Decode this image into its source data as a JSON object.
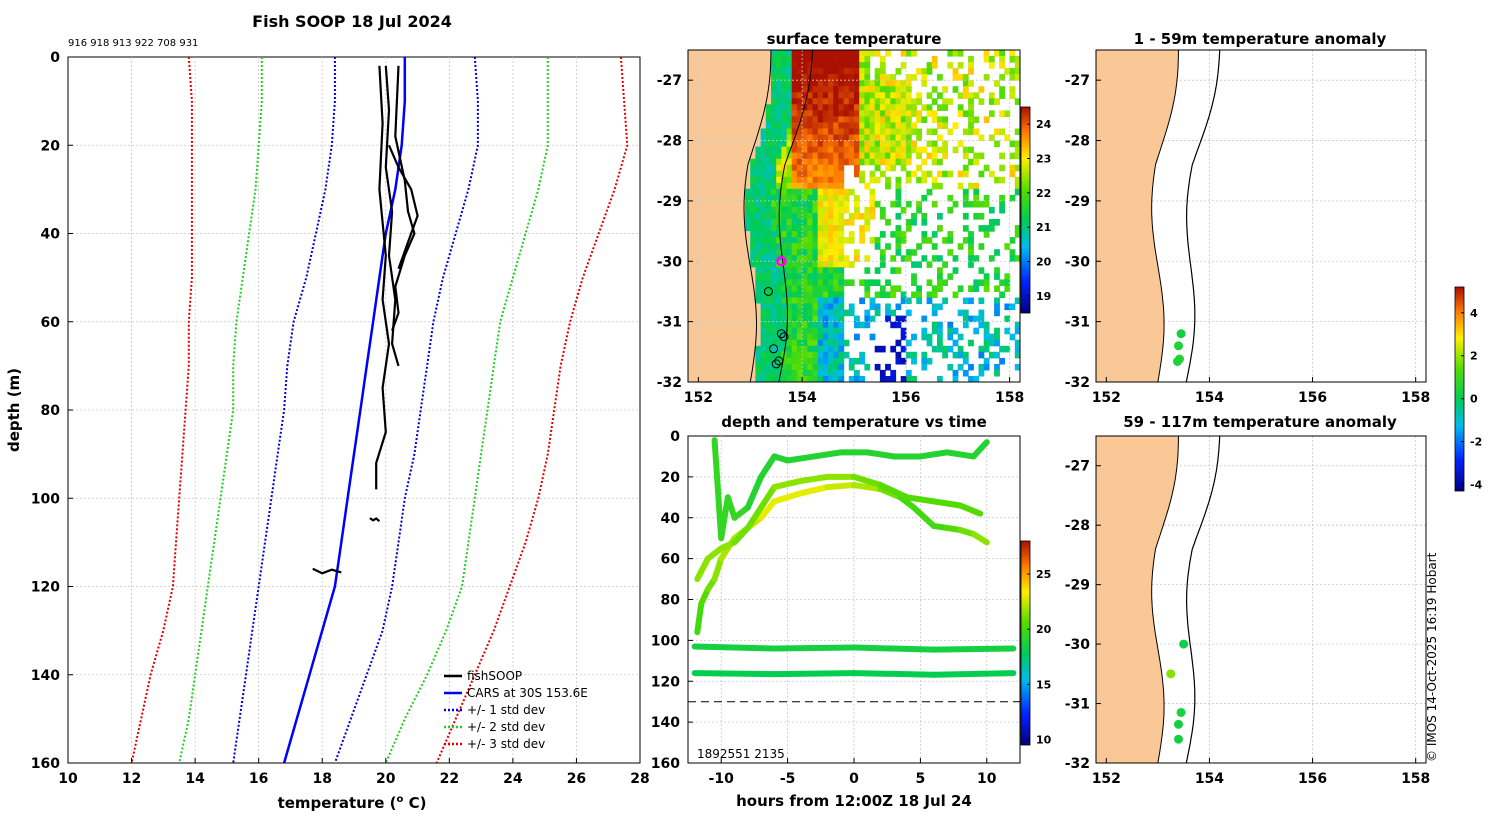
{
  "figure": {
    "main_title": "Fish SOOP 18 Jul 2024",
    "profile_ids": "916 918 913 922 708 931",
    "copyright": "© IMOS 14-Oct-2025 16:19 Hobart"
  },
  "colors": {
    "cars": "#0000ff",
    "std1": "#0000cc",
    "std2": "#22cc22",
    "std3": "#dd0000",
    "fish": "#000000",
    "land": "#f9c896",
    "marker": "#ff00ff"
  },
  "chart_data": [
    {
      "id": "profile",
      "type": "line",
      "title": "",
      "xlabel": "temperature (° C)",
      "xlabel_parts": [
        "temperature (",
        "o",
        " C)"
      ],
      "ylabel": "depth (m)",
      "xlim": [
        10,
        28
      ],
      "ylim": [
        160,
        0
      ],
      "xticks": [
        10,
        12,
        14,
        16,
        18,
        20,
        22,
        24,
        26,
        28
      ],
      "yticks": [
        0,
        20,
        40,
        60,
        80,
        100,
        120,
        140,
        160
      ],
      "legend_position": "bottom-right",
      "legend": [
        "fishSOOP",
        "CARS at 30S 153.6E",
        "+/- 1 std dev",
        "+/- 2 std dev",
        "+/- 3 std dev"
      ],
      "depth": [
        0,
        10,
        20,
        30,
        40,
        50,
        60,
        70,
        80,
        90,
        100,
        110,
        120,
        130,
        140,
        150,
        160
      ],
      "series": [
        {
          "name": "CARS at 30S 153.6E",
          "style": "solid",
          "color_key": "cars",
          "temps": [
            20.6,
            20.6,
            20.5,
            20.3,
            20.0,
            19.8,
            19.6,
            19.4,
            19.2,
            19.0,
            18.8,
            18.6,
            18.4,
            18.0,
            17.6,
            17.2,
            16.8
          ]
        },
        {
          "name": "+1 std",
          "style": "dotted",
          "color_key": "std1",
          "temps": [
            22.8,
            22.9,
            22.9,
            22.6,
            22.2,
            21.8,
            21.5,
            21.3,
            21.1,
            20.9,
            20.6,
            20.4,
            20.2,
            19.9,
            19.4,
            18.9,
            18.4
          ]
        },
        {
          "name": "-1 std",
          "style": "dotted",
          "color_key": "std1",
          "temps": [
            18.4,
            18.4,
            18.3,
            18.1,
            17.8,
            17.5,
            17.1,
            16.9,
            16.8,
            16.6,
            16.4,
            16.2,
            16.0,
            15.8,
            15.6,
            15.4,
            15.2
          ]
        },
        {
          "name": "+2 std",
          "style": "dotted",
          "color_key": "std2",
          "temps": [
            25.1,
            25.1,
            25.1,
            24.8,
            24.4,
            24.0,
            23.6,
            23.4,
            23.2,
            23.0,
            22.8,
            22.6,
            22.4,
            21.9,
            21.3,
            20.6,
            20.0
          ]
        },
        {
          "name": "-2 std",
          "style": "dotted",
          "color_key": "std2",
          "temps": [
            16.1,
            16.1,
            16.0,
            15.9,
            15.7,
            15.5,
            15.3,
            15.2,
            15.2,
            15.0,
            14.8,
            14.6,
            14.4,
            14.2,
            14.0,
            13.8,
            13.5
          ]
        },
        {
          "name": "+3 std",
          "style": "dotted",
          "color_key": "std3",
          "temps": [
            27.4,
            27.5,
            27.6,
            27.2,
            26.7,
            26.2,
            25.8,
            25.5,
            25.3,
            25.1,
            24.8,
            24.4,
            23.9,
            23.4,
            22.8,
            22.2,
            21.6
          ]
        },
        {
          "name": "-3 std",
          "style": "dotted",
          "color_key": "std3",
          "temps": [
            13.8,
            13.9,
            13.9,
            13.9,
            13.9,
            13.9,
            13.8,
            13.8,
            13.7,
            13.6,
            13.5,
            13.4,
            13.3,
            13.0,
            12.6,
            12.3,
            12.0
          ]
        }
      ],
      "fish_profiles": [
        {
          "name": "fishSOOP A",
          "points": [
            [
              19.8,
              2
            ],
            [
              19.9,
              15
            ],
            [
              19.8,
              30
            ],
            [
              20.0,
              45
            ],
            [
              19.9,
              55
            ],
            [
              20.1,
              65
            ],
            [
              19.9,
              75
            ],
            [
              20.0,
              85
            ],
            [
              19.7,
              92
            ],
            [
              19.7,
              98
            ]
          ]
        },
        {
          "name": "fishSOOP B",
          "points": [
            [
              20.0,
              2
            ],
            [
              20.1,
              12
            ],
            [
              20.0,
              25
            ],
            [
              20.2,
              35
            ],
            [
              20.1,
              45
            ],
            [
              20.3,
              55
            ],
            [
              20.2,
              65
            ],
            [
              20.4,
              70
            ]
          ]
        },
        {
          "name": "fishSOOP C",
          "points": [
            [
              20.4,
              2
            ],
            [
              20.3,
              18
            ],
            [
              20.6,
              28
            ],
            [
              20.7,
              35
            ],
            [
              20.9,
              40
            ],
            [
              20.6,
              45
            ],
            [
              20.3,
              52
            ],
            [
              20.4,
              58
            ],
            [
              20.2,
              62
            ]
          ]
        },
        {
          "name": "fishSOOP D",
          "points": [
            [
              20.1,
              20
            ],
            [
              20.4,
              25
            ],
            [
              20.8,
              30
            ],
            [
              21.0,
              36
            ],
            [
              20.7,
              42
            ],
            [
              20.4,
              48
            ]
          ]
        },
        {
          "name": "fishSOOP E",
          "points": [
            [
              19.5,
              104.5
            ],
            [
              19.6,
              105
            ],
            [
              19.7,
              104.6
            ],
            [
              19.8,
              105.2
            ]
          ]
        },
        {
          "name": "fishSOOP F",
          "points": [
            [
              17.7,
              116
            ],
            [
              18.0,
              117
            ],
            [
              18.3,
              116.2
            ],
            [
              18.6,
              116.8
            ]
          ]
        }
      ]
    },
    {
      "id": "sst_map",
      "type": "heatmap",
      "title": "surface temperature",
      "xlim": [
        151.8,
        158.2
      ],
      "ylim": [
        -32,
        -26.5
      ],
      "xticks": [
        152,
        154,
        156,
        158
      ],
      "yticks": [
        -27,
        -28,
        -29,
        -30,
        -31,
        -32
      ],
      "colorbar": {
        "min": 18.5,
        "max": 24.5,
        "ticks": [
          19,
          20,
          21,
          22,
          23,
          24
        ]
      },
      "current_position": [
        153.6,
        -30.0
      ],
      "profile_positions": [
        [
          153.35,
          -30.5
        ],
        [
          153.6,
          -31.2
        ],
        [
          153.65,
          -31.25
        ],
        [
          153.45,
          -31.45
        ],
        [
          153.55,
          -31.65
        ],
        [
          153.5,
          -31.7
        ]
      ]
    },
    {
      "id": "depth_time",
      "type": "line",
      "title": "depth and temperature vs time",
      "xlabel": "hours from 12:00Z 18 Jul 24",
      "xlim": [
        -12.5,
        12.5
      ],
      "ylim": [
        160,
        0
      ],
      "xticks": [
        -10,
        -5,
        0,
        5,
        10
      ],
      "yticks": [
        0,
        20,
        40,
        60,
        80,
        100,
        120,
        140,
        160
      ],
      "reference_depth": 130,
      "colorbar": {
        "min": 9.5,
        "max": 28,
        "ticks": [
          10,
          15,
          20,
          25
        ]
      },
      "overlapped_ids": "1892551 2135",
      "tracks": [
        {
          "t": [
            -11.8,
            -11.5,
            -11.0,
            -10.5,
            -10.0,
            -9.0,
            -8.0,
            -7.0,
            -6.0,
            -4.0,
            -2.0,
            0.0,
            2.0,
            3.5,
            4.5,
            6.0,
            7.0,
            8.0,
            9.0,
            10.0
          ],
          "depth": [
            96,
            82,
            75,
            70,
            60,
            50,
            45,
            40,
            32,
            28,
            25,
            24,
            26,
            30,
            35,
            44,
            45,
            46,
            48,
            52
          ],
          "temps": [
            19.5,
            20.0,
            20.5,
            21.0,
            21.5,
            22.0,
            22.0,
            22.5,
            23.0,
            23.0,
            23.0,
            22.5,
            22.0,
            21.0,
            20.0,
            20.0,
            20.0,
            20.5,
            21.0,
            21.5
          ]
        },
        {
          "t": [
            -11.8,
            -11.0,
            -10.0,
            -9.0,
            -8.0,
            -7.0,
            -6.0,
            -4.0,
            -2.0,
            0.0,
            2.0,
            4.0,
            6.0,
            8.0,
            9.5
          ],
          "depth": [
            70,
            60,
            55,
            52,
            45,
            35,
            25,
            22,
            20,
            20,
            24,
            30,
            32,
            34,
            38
          ],
          "temps": [
            21.0,
            21.5,
            21.5,
            21.5,
            21.0,
            21.0,
            21.0,
            21.5,
            21.5,
            21.5,
            21.0,
            20.5,
            20.5,
            20.5,
            20.5
          ]
        },
        {
          "t": [
            -10.5,
            -10.0,
            -9.5,
            -9.0,
            -8.0,
            -7.0,
            -6.0,
            -5.0,
            -3.0,
            -1.0,
            1.0,
            3.0,
            5.0,
            7.0,
            9.0,
            10.0
          ],
          "depth": [
            2,
            50,
            30,
            40,
            35,
            20,
            10,
            12,
            10,
            8,
            8,
            10,
            10,
            8,
            10,
            3
          ],
          "temps": [
            19.5,
            19.5,
            19.5,
            19.5,
            19.5,
            19.0,
            19.0,
            19.0,
            19.0,
            19.0,
            19.0,
            19.0,
            19.0,
            19.0,
            19.0,
            19.0
          ]
        },
        {
          "t": [
            -12.0,
            -6.0,
            0.0,
            6.0,
            12.0
          ],
          "depth": [
            103,
            104,
            103.5,
            104.5,
            104
          ],
          "temps": [
            18.5,
            18.5,
            18.5,
            18.5,
            18.5
          ]
        },
        {
          "t": [
            -12.0,
            -6.0,
            0.0,
            6.0,
            12.0
          ],
          "depth": [
            116,
            116.5,
            116,
            116.8,
            116
          ],
          "temps": [
            18.0,
            18.0,
            18.0,
            18.0,
            18.0
          ]
        }
      ]
    },
    {
      "id": "anom_upper",
      "type": "scatter",
      "title": "1 - 59m temperature anomaly",
      "xlim": [
        151.8,
        158.2
      ],
      "ylim": [
        -32,
        -26.5
      ],
      "xticks": [
        152,
        154,
        156,
        158
      ],
      "yticks": [
        -27,
        -28,
        -29,
        -30,
        -31,
        -32
      ],
      "points": [
        [
          153.45,
          -31.2,
          0.3
        ],
        [
          153.4,
          -31.4,
          0.5
        ],
        [
          153.42,
          -31.62,
          0.6
        ],
        [
          153.38,
          -31.66,
          0.5
        ]
      ]
    },
    {
      "id": "anom_lower",
      "type": "scatter",
      "title": "59 - 117m temperature anomaly",
      "xlim": [
        151.8,
        158.2
      ],
      "ylim": [
        -32,
        -26.5
      ],
      "xticks": [
        152,
        154,
        156,
        158
      ],
      "yticks": [
        -27,
        -28,
        -29,
        -30,
        -31,
        -32
      ],
      "points": [
        [
          153.5,
          -30.0,
          0.2
        ],
        [
          153.25,
          -30.5,
          1.8
        ],
        [
          153.45,
          -31.15,
          0.4
        ],
        [
          153.4,
          -31.35,
          0.3
        ],
        [
          153.4,
          -31.6,
          0.3
        ]
      ]
    },
    {
      "id": "anomaly_colorbar",
      "type": "colorbar",
      "min": -4.3,
      "max": 5.2,
      "ticks": [
        -4,
        -2,
        0,
        2,
        4
      ]
    }
  ]
}
